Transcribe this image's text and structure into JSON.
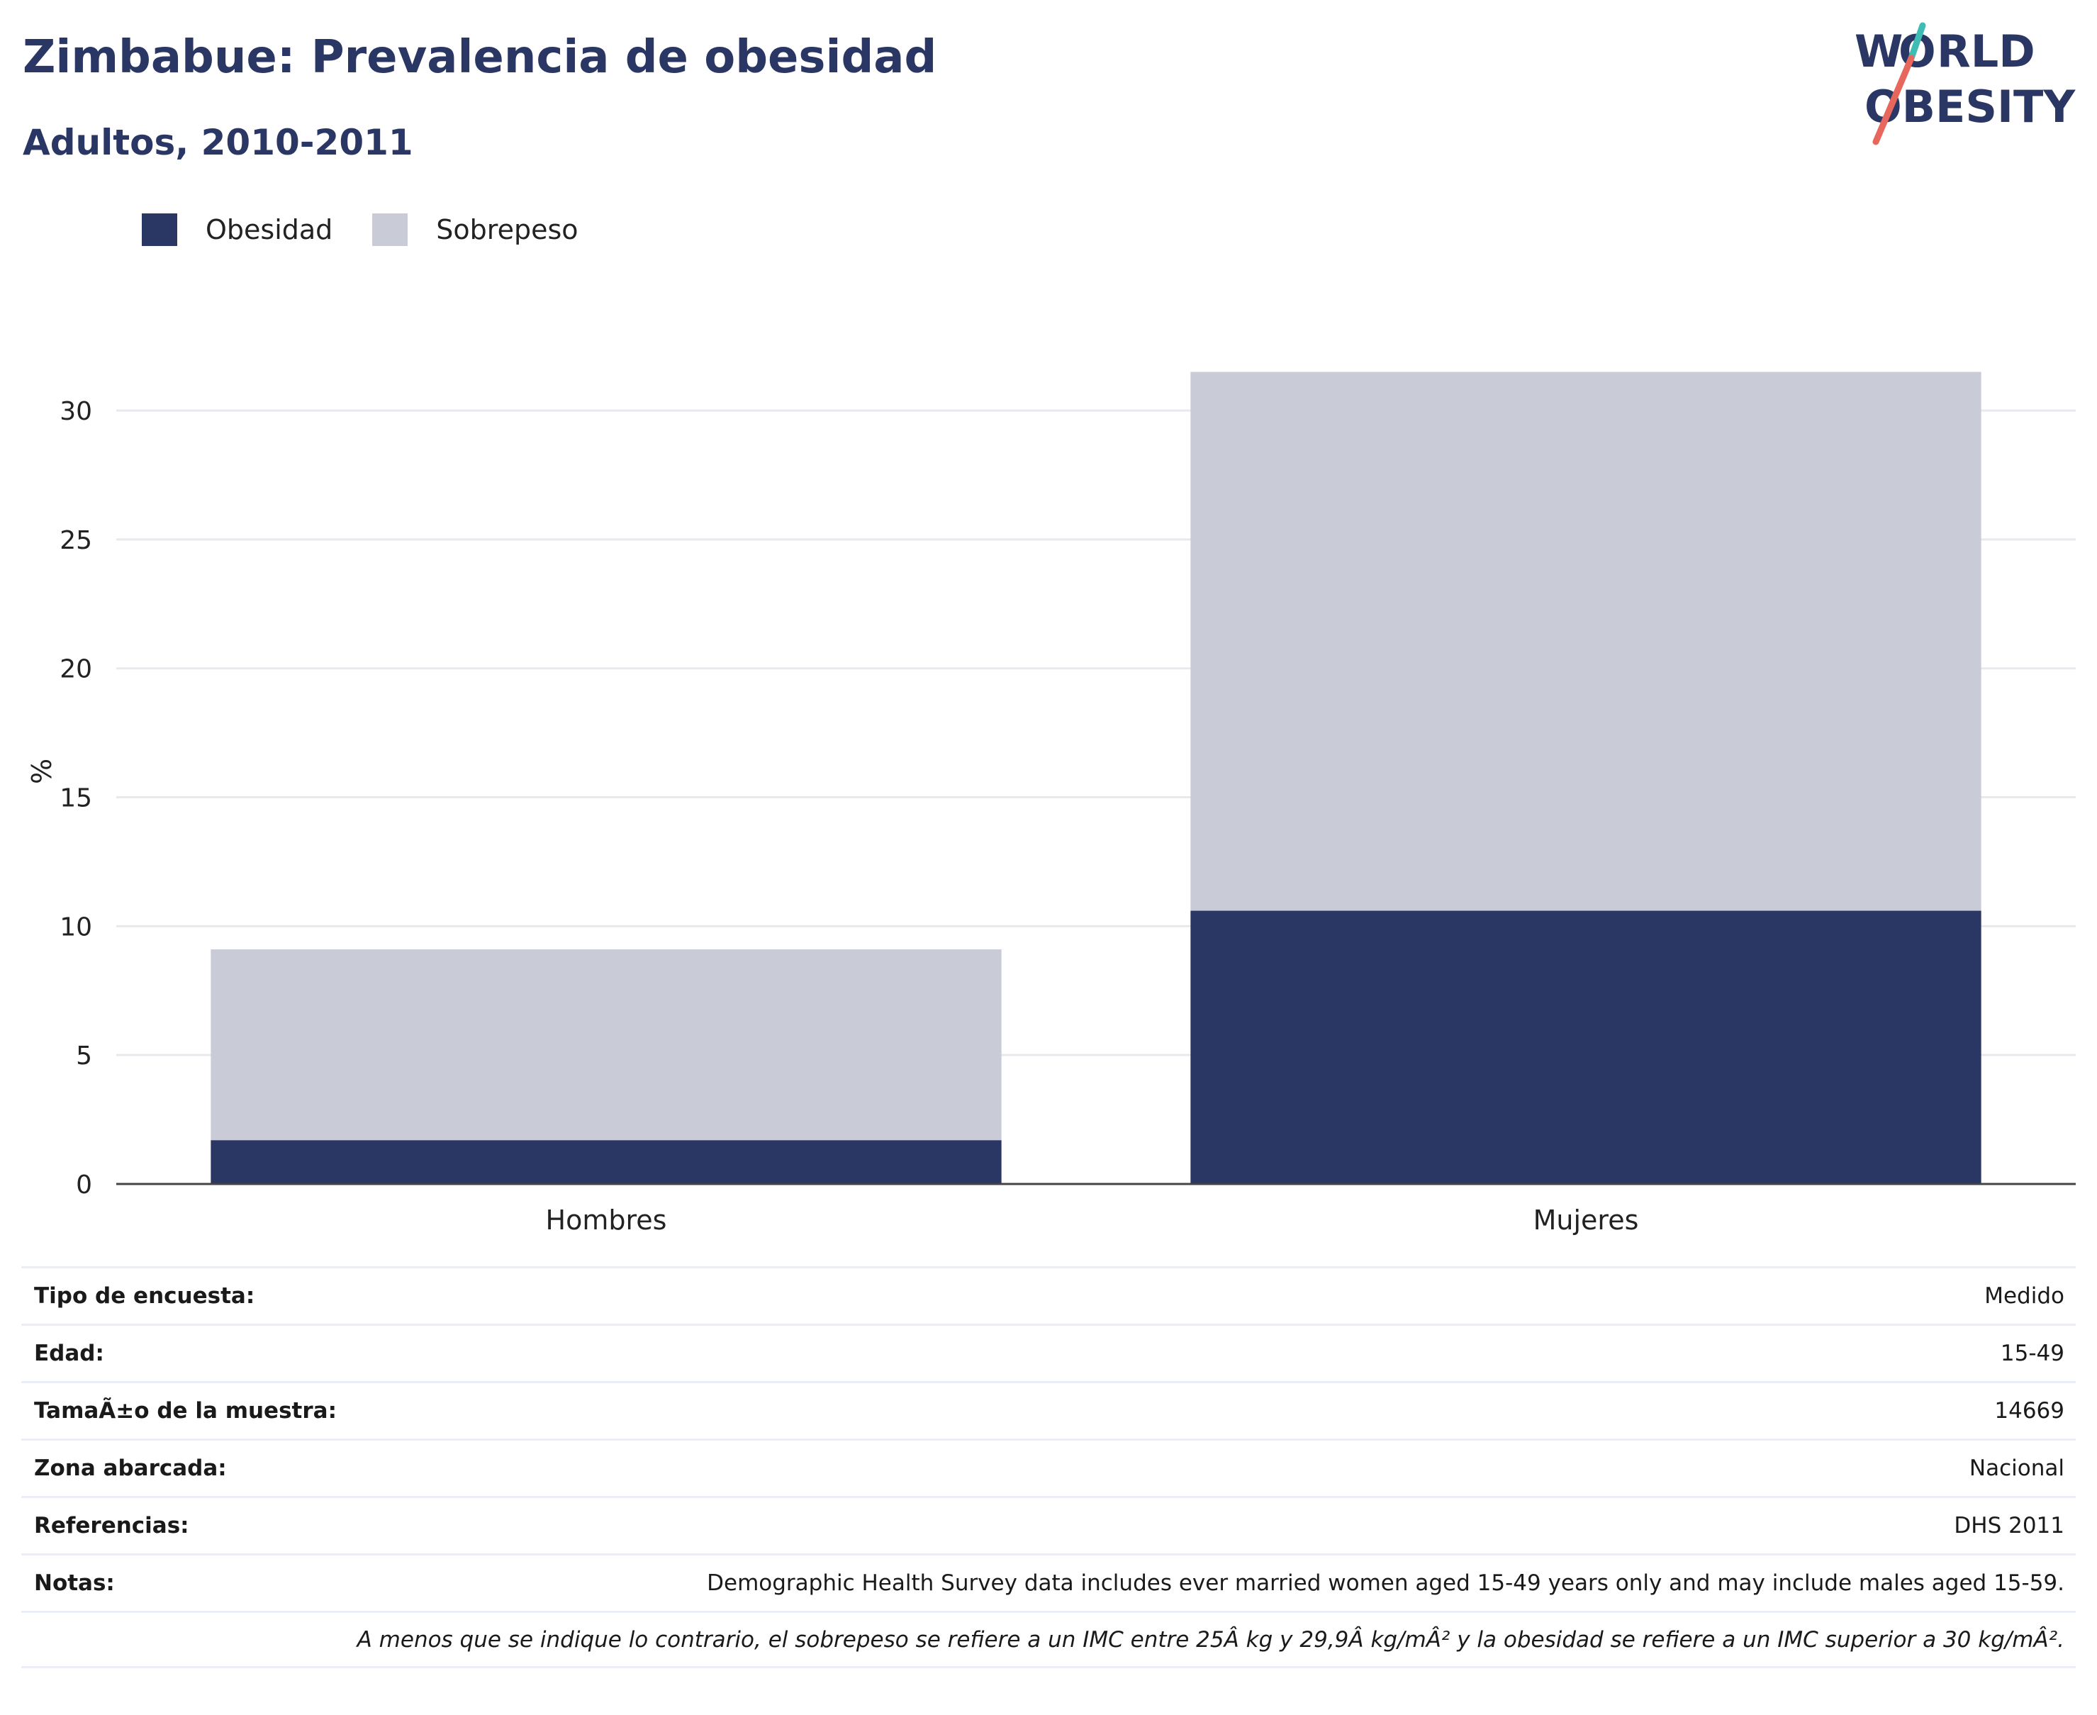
{
  "header": {
    "title": "Zimbabue: Prevalencia de obesidad",
    "subtitle": "Adultos, 2010-2011",
    "logo_text": "WORLD OBESITY"
  },
  "colors": {
    "obesity": "#2a3663",
    "overweight": "#c9cbd6",
    "title": "#2a3663",
    "grid": "#e8e9ef",
    "axis": "#444444",
    "logo_teal": "#3fbcb4",
    "logo_coral": "#e8675c"
  },
  "chart_data": {
    "type": "bar",
    "stacked": true,
    "categories": [
      "Hombres",
      "Mujeres"
    ],
    "series": [
      {
        "name": "Obesidad",
        "values": [
          1.7,
          10.6
        ]
      },
      {
        "name": "Sobrepeso",
        "values": [
          7.4,
          20.9
        ]
      }
    ],
    "ylabel": "%",
    "xlabel": "",
    "ylim": [
      0,
      33
    ],
    "yticks": [
      0,
      5,
      10,
      15,
      20,
      25,
      30
    ],
    "grid": true,
    "legend_position": "top-left"
  },
  "table": {
    "rows": [
      {
        "key": "Tipo de encuesta:",
        "value": "Medido"
      },
      {
        "key": "Edad:",
        "value": "15-49"
      },
      {
        "key": "TamaÃ±o de la muestra:",
        "value": "14669"
      },
      {
        "key": "Zona abarcada:",
        "value": "Nacional"
      },
      {
        "key": "Referencias:",
        "value": "DHS 2011"
      },
      {
        "key": "Notas:",
        "value": "Demographic Health Survey data includes ever married women aged 15-49 years only and may include males aged 15-59."
      }
    ],
    "footnote": "A menos que se indique lo contrario, el sobrepeso se refiere a un IMC entre 25Â kg y 29,9Â kg/mÂ² y la obesidad se refiere a un IMC superior a 30 kg/mÂ²."
  }
}
